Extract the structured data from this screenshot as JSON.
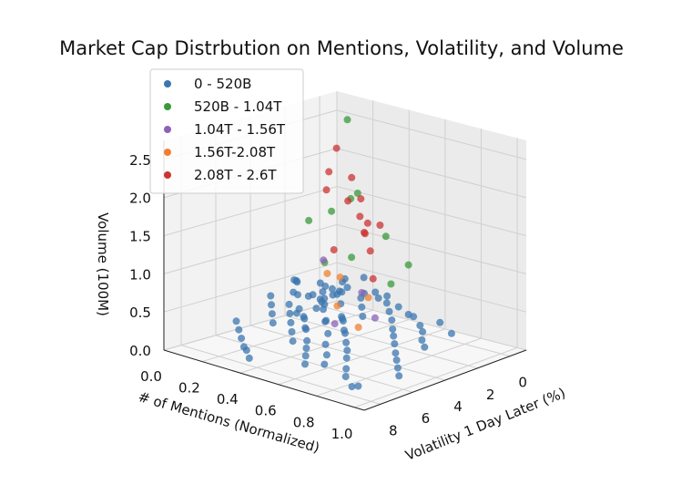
{
  "chart_data": {
    "type": "scatter",
    "projection": "3d",
    "title": "Market Cap Distrbution on Mentions, Volatility, and Volume",
    "xlabel": "Volatility 1 Day Later (%)",
    "ylabel": "# of Mentions (Normalized)",
    "zlabel": "Volume (100M)",
    "x_ticks": [
      "0",
      "2",
      "4",
      "6",
      "8"
    ],
    "y_ticks": [
      "0.0",
      "0.2",
      "0.4",
      "0.6",
      "0.8",
      "1.0"
    ],
    "z_ticks": [
      "0.0",
      "0.5",
      "1.0",
      "1.5",
      "2.0",
      "2.5"
    ],
    "xlim": [
      9,
      -1
    ],
    "ylim": [
      0,
      1.05
    ],
    "zlim": [
      0,
      2.75
    ],
    "grid": true,
    "legend_position": "top-left",
    "series": [
      {
        "name": "0 - 520B",
        "color": "#3b75af",
        "points": [
          [
            0.2,
            0.05,
            0.3
          ],
          [
            0.5,
            0.12,
            0.25
          ],
          [
            0.8,
            0.08,
            0.4
          ],
          [
            1.1,
            0.2,
            0.35
          ],
          [
            1.3,
            0.15,
            0.2
          ],
          [
            1.5,
            0.25,
            0.45
          ],
          [
            1.7,
            0.1,
            0.3
          ],
          [
            1.9,
            0.3,
            0.5
          ],
          [
            2.1,
            0.18,
            0.22
          ],
          [
            2.3,
            0.22,
            0.38
          ],
          [
            2.5,
            0.35,
            0.42
          ],
          [
            2.6,
            0.12,
            0.15
          ],
          [
            2.8,
            0.28,
            0.55
          ],
          [
            3.0,
            0.4,
            0.32
          ],
          [
            3.1,
            0.18,
            0.28
          ],
          [
            3.3,
            0.32,
            0.48
          ],
          [
            3.5,
            0.45,
            0.36
          ],
          [
            3.6,
            0.25,
            0.26
          ],
          [
            3.8,
            0.38,
            0.6
          ],
          [
            4.0,
            0.5,
            0.4
          ],
          [
            4.1,
            0.3,
            0.3
          ],
          [
            4.3,
            0.42,
            0.52
          ],
          [
            4.5,
            0.55,
            0.35
          ],
          [
            4.6,
            0.35,
            0.25
          ],
          [
            4.8,
            0.48,
            0.45
          ],
          [
            5.0,
            0.6,
            0.38
          ],
          [
            5.1,
            0.4,
            0.3
          ],
          [
            5.3,
            0.52,
            0.5
          ],
          [
            5.5,
            0.65,
            0.33
          ],
          [
            5.6,
            0.45,
            0.22
          ],
          [
            5.8,
            0.58,
            0.42
          ],
          [
            6.0,
            0.7,
            0.3
          ],
          [
            6.2,
            0.5,
            0.2
          ],
          [
            6.4,
            0.62,
            0.35
          ],
          [
            6.6,
            0.75,
            0.28
          ],
          [
            6.8,
            0.55,
            0.18
          ],
          [
            7.0,
            0.68,
            0.3
          ],
          [
            7.2,
            0.8,
            0.22
          ],
          [
            7.4,
            0.6,
            0.15
          ],
          [
            7.6,
            0.72,
            0.25
          ],
          [
            7.8,
            0.85,
            0.2
          ],
          [
            8.0,
            0.9,
            0.12
          ],
          [
            8.2,
            0.95,
            0.18
          ],
          [
            0.6,
            0.3,
            0.6
          ],
          [
            1.0,
            0.4,
            0.5
          ],
          [
            1.4,
            0.5,
            0.45
          ],
          [
            1.8,
            0.55,
            0.4
          ],
          [
            2.2,
            0.6,
            0.35
          ],
          [
            2.7,
            0.65,
            0.3
          ],
          [
            3.2,
            0.7,
            0.28
          ],
          [
            3.7,
            0.75,
            0.25
          ],
          [
            4.2,
            0.8,
            0.2
          ],
          [
            4.7,
            0.85,
            0.18
          ],
          [
            5.2,
            0.9,
            0.15
          ],
          [
            5.7,
            0.95,
            0.12
          ],
          [
            2.0,
            0.05,
            0.5
          ],
          [
            2.4,
            0.1,
            0.55
          ],
          [
            2.9,
            0.15,
            0.6
          ],
          [
            3.4,
            0.2,
            0.5
          ],
          [
            3.9,
            0.1,
            0.45
          ],
          [
            4.4,
            0.15,
            0.4
          ],
          [
            4.9,
            0.2,
            0.35
          ],
          [
            5.4,
            0.25,
            0.3
          ],
          [
            5.9,
            0.1,
            0.25
          ],
          [
            6.3,
            0.15,
            0.2
          ],
          [
            6.7,
            0.2,
            0.15
          ],
          [
            7.1,
            0.25,
            0.1
          ],
          [
            7.5,
            0.3,
            0.12
          ],
          [
            7.9,
            0.35,
            0.08
          ],
          [
            3.5,
            0.55,
            0.7
          ],
          [
            4.0,
            0.6,
            0.65
          ],
          [
            4.5,
            0.65,
            0.6
          ],
          [
            3.2,
            0.45,
            0.75
          ],
          [
            2.8,
            0.4,
            0.8
          ],
          [
            2.4,
            0.35,
            0.7
          ],
          [
            1.2,
            0.6,
            0.35
          ],
          [
            1.6,
            0.7,
            0.3
          ],
          [
            2.0,
            0.75,
            0.28
          ],
          [
            2.6,
            0.8,
            0.25
          ],
          [
            3.0,
            0.85,
            0.22
          ],
          [
            0.3,
            0.4,
            0.4
          ],
          [
            0.7,
            0.5,
            0.35
          ],
          [
            0.9,
            0.6,
            0.3
          ],
          [
            0.4,
            0.7,
            0.25
          ],
          [
            0.8,
            0.8,
            0.2
          ],
          [
            5.0,
            0.3,
            0.55
          ],
          [
            5.5,
            0.35,
            0.5
          ],
          [
            6.0,
            0.4,
            0.45
          ],
          [
            6.5,
            0.45,
            0.4
          ],
          [
            7.0,
            0.5,
            0.35
          ],
          [
            4.2,
            0.25,
            0.62
          ],
          [
            3.6,
            0.3,
            0.58
          ],
          [
            3.0,
            0.35,
            0.65
          ],
          [
            2.2,
            0.45,
            0.6
          ],
          [
            1.9,
            0.5,
            0.55
          ]
        ]
      },
      {
        "name": "520B - 1.04T",
        "color": "#3a9a3a",
        "points": [
          [
            0.5,
            0.2,
            2.6
          ],
          [
            1.5,
            0.35,
            1.8
          ],
          [
            2.5,
            0.3,
            1.6
          ],
          [
            3.0,
            0.45,
            1.9
          ],
          [
            3.5,
            0.5,
            1.2
          ],
          [
            2.0,
            0.55,
            1.4
          ],
          [
            4.0,
            0.4,
            1.1
          ],
          [
            1.2,
            0.6,
            1.0
          ],
          [
            2.8,
            0.65,
            0.9
          ],
          [
            3.3,
            0.25,
            1.5
          ]
        ]
      },
      {
        "name": "1.04T - 1.56T",
        "color": "#8e62b8",
        "points": [
          [
            0.3,
            0.05,
            0.65
          ],
          [
            1.8,
            0.4,
            0.55
          ],
          [
            3.2,
            0.6,
            0.45
          ],
          [
            4.5,
            0.5,
            0.4
          ]
        ]
      },
      {
        "name": "1.56T-2.08T",
        "color": "#f08030",
        "points": [
          [
            0.4,
            0.08,
            0.5
          ],
          [
            2.5,
            0.5,
            0.6
          ],
          [
            3.8,
            0.45,
            0.55
          ],
          [
            2.0,
            0.3,
            0.7
          ],
          [
            4.2,
            0.6,
            0.4
          ]
        ]
      },
      {
        "name": "2.08T - 2.6T",
        "color": "#cc3333",
        "points": [
          [
            0.6,
            0.15,
            2.2
          ],
          [
            1.0,
            0.25,
            1.6
          ],
          [
            2.4,
            0.4,
            2.1
          ],
          [
            3.5,
            0.55,
            2.0
          ],
          [
            4.2,
            0.65,
            1.8
          ],
          [
            3.0,
            0.5,
            1.7
          ],
          [
            2.8,
            0.3,
            1.9
          ],
          [
            4.6,
            0.7,
            1.5
          ],
          [
            3.8,
            0.6,
            1.6
          ],
          [
            2.2,
            0.45,
            1.4
          ],
          [
            3.2,
            0.35,
            2.2
          ],
          [
            4.0,
            0.45,
            1.3
          ],
          [
            5.0,
            0.75,
            1.2
          ],
          [
            1.8,
            0.5,
            1.5
          ]
        ]
      }
    ]
  }
}
